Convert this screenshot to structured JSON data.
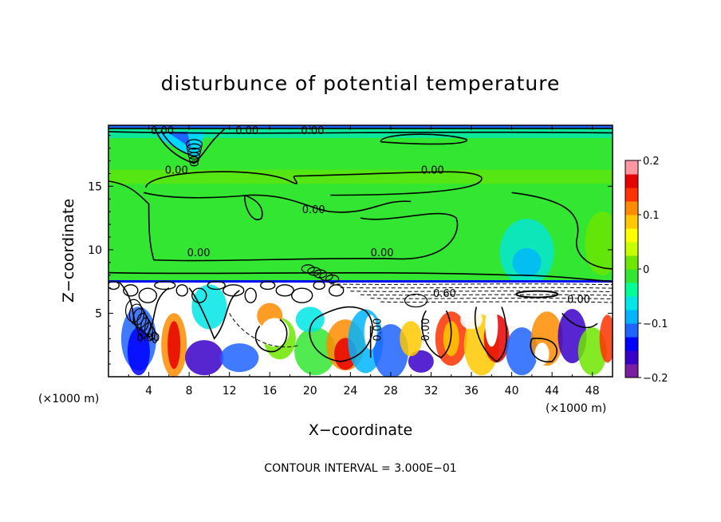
{
  "chart_data": {
    "type": "heatmap",
    "title": "disturbunce of potential temperature",
    "xlabel": "X−coordinate",
    "ylabel": "Z−coordinate",
    "x_unit": "(×1000 m)",
    "y_unit": "(×1000 m)",
    "xlim": [
      0,
      50
    ],
    "ylim": [
      0,
      19.8
    ],
    "x_ticks": [
      4,
      8,
      12,
      16,
      20,
      24,
      28,
      32,
      36,
      40,
      44,
      48
    ],
    "y_ticks": [
      5,
      10,
      15
    ],
    "colorbar": {
      "min": -0.2,
      "max": 0.2,
      "tick_values": [
        -0.2,
        -0.1,
        0,
        0.1,
        0.2
      ],
      "tick_labels": [
        "−0.2",
        "−0.1",
        "0",
        "0.1",
        "0.2"
      ],
      "colors": [
        "#7b1fa2",
        "#3a00c8",
        "#0000ff",
        "#1e64ff",
        "#00b4ff",
        "#00e6e6",
        "#00ff96",
        "#32e632",
        "#6ee600",
        "#c8ff00",
        "#ffff00",
        "#ffc800",
        "#ff8c00",
        "#ff3200",
        "#e60000",
        "#ff96a0"
      ]
    },
    "contour_interval_text": "CONTOUR INTERVAL = 3.000E−01",
    "contour_labels": [
      "0.00",
      "0.00",
      "0.00",
      "0.00",
      "0.00",
      "0.00",
      "0.00",
      "0.00",
      "0.60",
      "0.00",
      "0.00",
      "0.00",
      "0.00"
    ],
    "grid": false
  }
}
